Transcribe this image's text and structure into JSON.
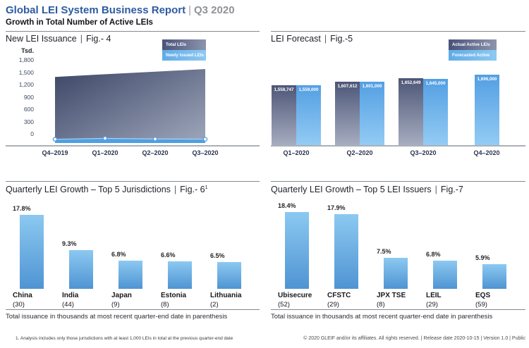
{
  "header": {
    "title": "Global LEI System Business Report",
    "divider": "|",
    "period": "Q3 2020",
    "subtitle": "Growth in Total Number of Active LEIs"
  },
  "chart_data": [
    {
      "id": "fig4",
      "type": "area",
      "panel_title": "New LEI Issuance",
      "figure_label": "Fig.- 4",
      "y_axis_unit": "Tsd.",
      "categories": [
        "Q4–2019",
        "Q1–2020",
        "Q2–2020",
        "Q3–2020"
      ],
      "series": [
        {
          "name": "Total LEIs",
          "values": [
            1527,
            1592,
            1653,
            1715
          ]
        },
        {
          "name": "Newly Issued LEIs",
          "values": [
            39,
            60,
            46,
            41
          ]
        }
      ],
      "ylim": [
        0,
        1800
      ],
      "yticks": [
        0,
        300,
        600,
        900,
        1200,
        1500,
        1800
      ],
      "ytick_labels": [
        "0",
        "300",
        "600",
        "900",
        "1,200",
        "1,500",
        "1,800"
      ],
      "legend_position": "top-right",
      "grid": false
    },
    {
      "id": "fig5",
      "type": "bar",
      "panel_title": "LEI Forecast",
      "figure_label": "Fig.-5",
      "categories": [
        "Q1–2020",
        "Q2–2020",
        "Q3–2020",
        "Q4–2020"
      ],
      "series": [
        {
          "name": "Actual Active LEIs",
          "values": [
            1558747,
            1607612,
            1652649,
            null
          ]
        },
        {
          "name": "Forecasted Active LEIs",
          "values": [
            1559000,
            1601000,
            1645000,
            1696000
          ]
        }
      ],
      "data_labels": [
        [
          "1,558,747",
          "1,559,000"
        ],
        [
          "1,607,612",
          "1,601,000"
        ],
        [
          "1,652,649",
          "1,645,000"
        ],
        [
          null,
          "1,696,000"
        ]
      ],
      "legend_position": "top-right",
      "value_axis_hidden": true
    },
    {
      "id": "fig6",
      "type": "bar",
      "panel_title": "Quarterly LEI Growth – Top 5 Jurisdictions",
      "figure_label": "Fig.- 6",
      "figure_superscript": "1",
      "categories": [
        "China",
        "India",
        "Japan",
        "Estonia",
        "Lithuania"
      ],
      "category_counts": [
        "(30)",
        "(44)",
        "(9)",
        "(8)",
        "(2)"
      ],
      "values": [
        17.8,
        9.3,
        6.8,
        6.6,
        6.5
      ],
      "value_labels": [
        "17.8%",
        "9.3%",
        "6.8%",
        "6.6%",
        "6.5%"
      ],
      "ylim": [
        0,
        20
      ],
      "note": "Total issuance in thousands at most recent quarter-end date in parenthesis"
    },
    {
      "id": "fig7",
      "type": "bar",
      "panel_title": "Quarterly LEI Growth – Top 5 LEI Issuers",
      "figure_label": "Fig.-7",
      "categories": [
        "Ubisecure",
        "CFSTC",
        "JPX TSE",
        "LEIL",
        "EQS"
      ],
      "category_counts": [
        "(52)",
        "(29)",
        "(8)",
        "(29)",
        "(59)"
      ],
      "values": [
        18.4,
        17.9,
        7.5,
        6.8,
        5.9
      ],
      "value_labels": [
        "18.4%",
        "17.9%",
        "7.5%",
        "6.8%",
        "5.9%"
      ],
      "ylim": [
        0,
        20
      ],
      "note": "Total issuance in thousands at most recent quarter-end date in parenthesis"
    }
  ],
  "colors": {
    "brand_blue": "#2d5ba1",
    "dark_series_top": "#3c4666",
    "dark_series_bottom": "#99a1b6",
    "light_series": "#4f9fe3",
    "light_bar_top": "#8cc9f1",
    "light_bar_bottom": "#4f94d3"
  },
  "footnote_fig6": "1. Analysis includes only those jurisdictions with at least 1,000 LEIs in total at the previous quarter-end date",
  "footer": "© 2020 GLEIF and/or its affiliates. All rights reserved.  |  Release date 2020-10-15  |  Version 1.0  |  Public"
}
